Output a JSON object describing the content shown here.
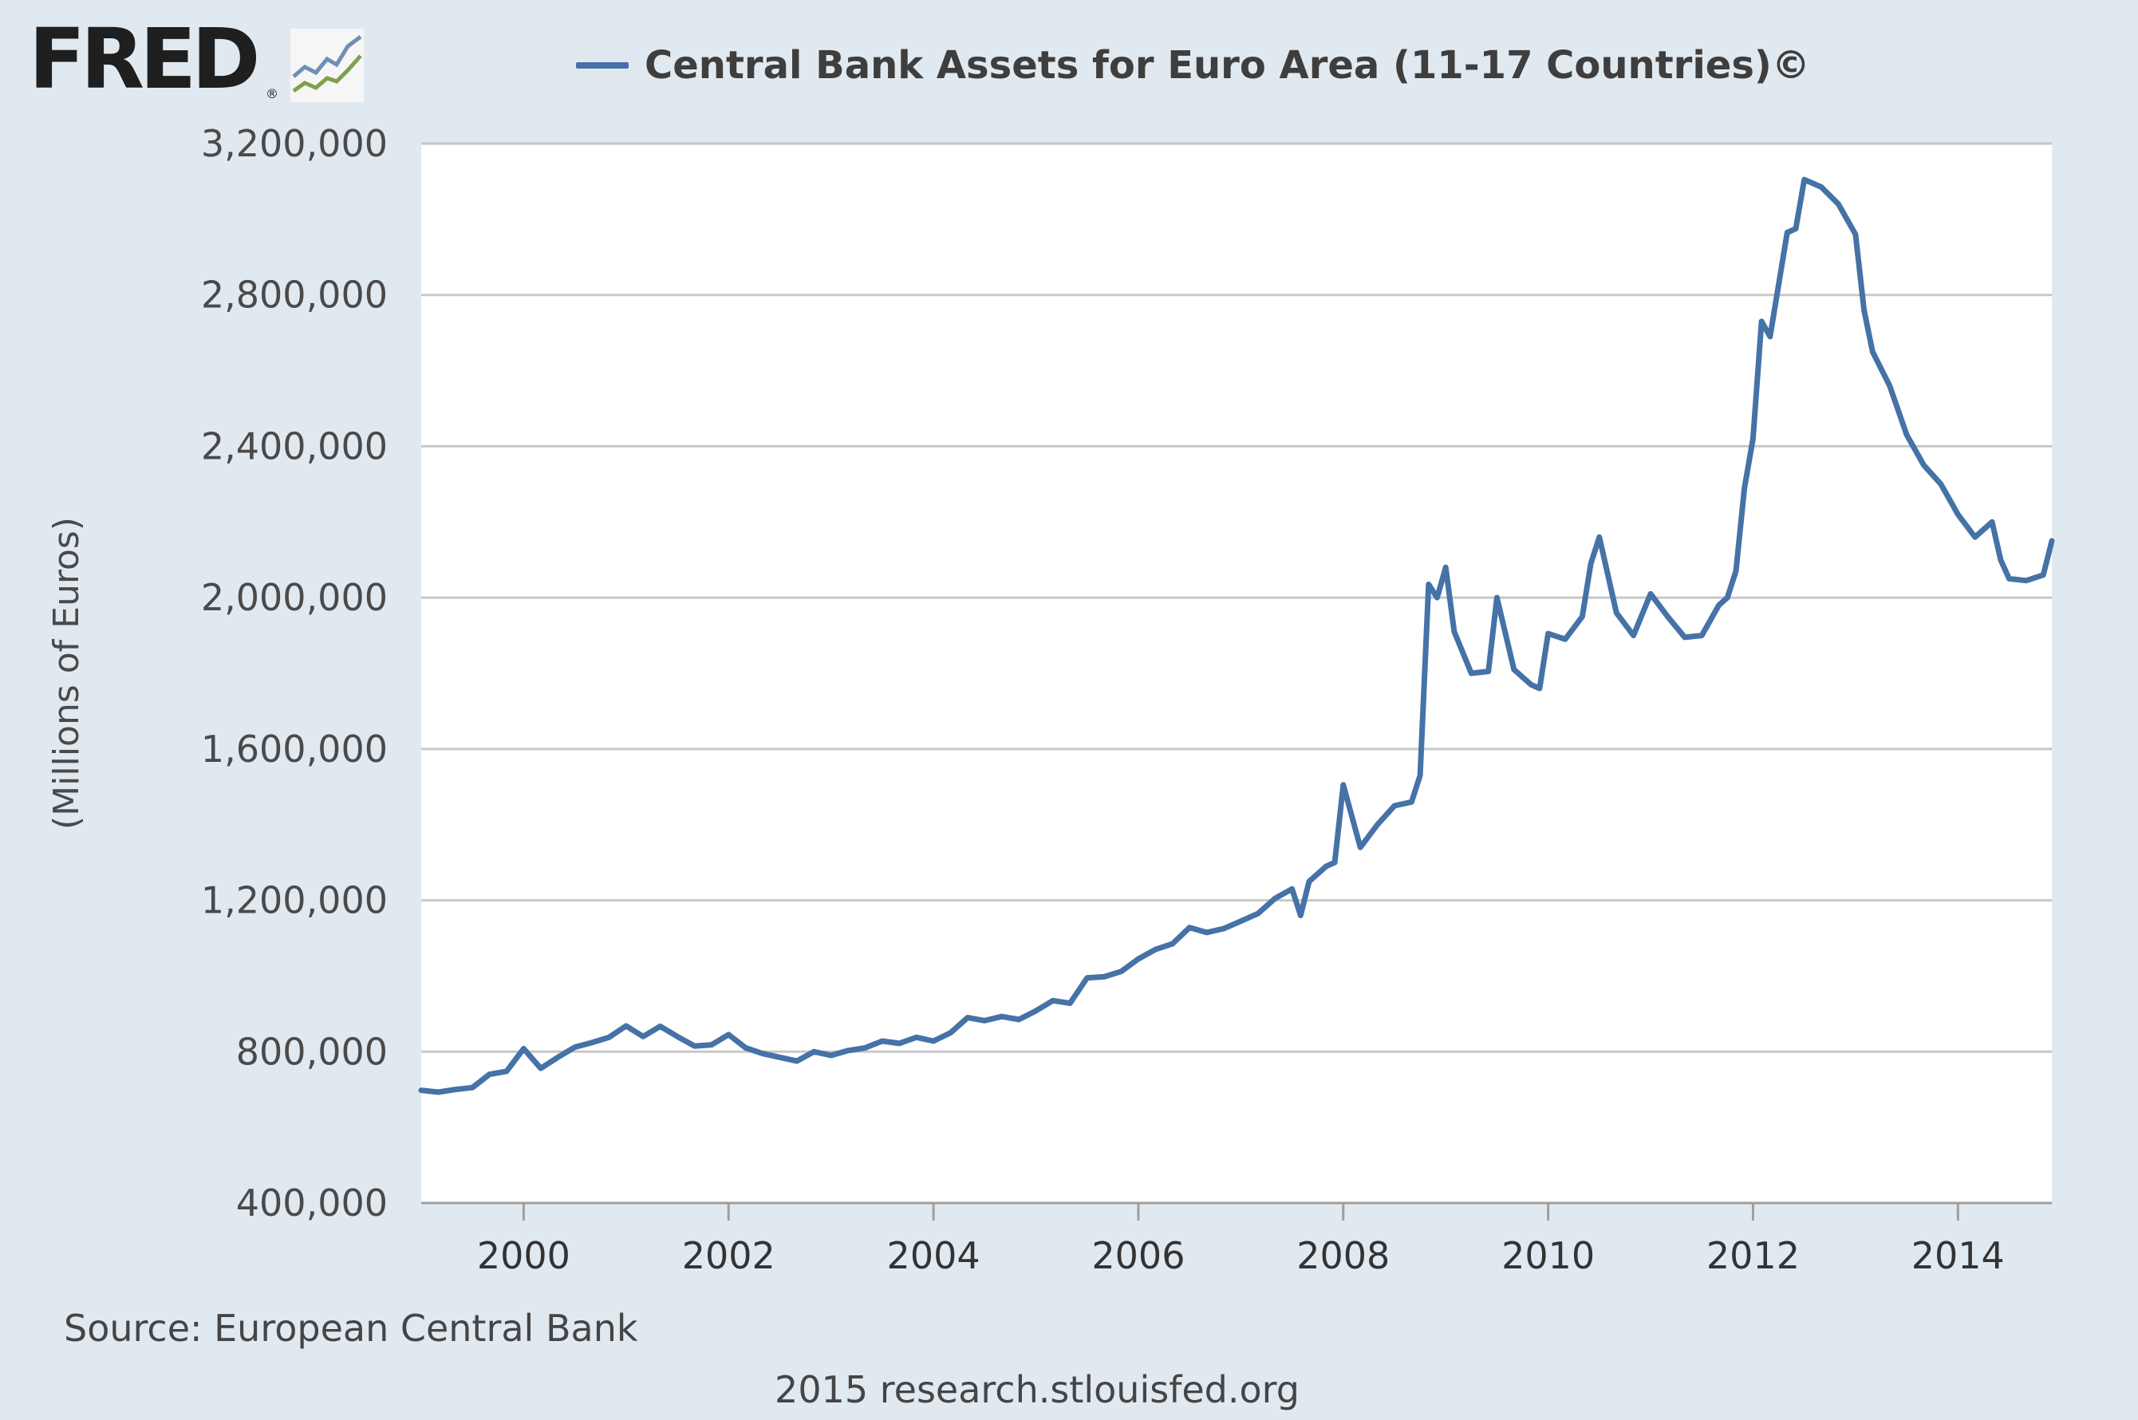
{
  "logo": {
    "text": "FRED",
    "mark": "®",
    "icon": "trend-chart-icon"
  },
  "footer": {
    "source": "Source: European Central Bank",
    "credit": "2015 research.stlouisfed.org"
  },
  "colors": {
    "background": "#e1e9f0",
    "plot": "#ffffff",
    "series": "#4572a7",
    "grid": "#c8c8c8"
  },
  "chart_data": {
    "type": "line",
    "title": "Central Bank Assets for Euro Area (11-17 Countries)©",
    "ylabel": "(Millions of Euros)",
    "xlabel": "",
    "ylim": [
      400000,
      3200000
    ],
    "yticks": [
      400000,
      800000,
      1200000,
      1600000,
      2000000,
      2400000,
      2800000,
      3200000
    ],
    "ytick_labels": [
      "400,000",
      "800,000",
      "1,200,000",
      "1,600,000",
      "2,000,000",
      "2,400,000",
      "2,800,000",
      "3,200,000"
    ],
    "xlim": [
      "1999-01",
      "2014-12"
    ],
    "xticks": [
      "2000-01",
      "2002-01",
      "2004-01",
      "2006-01",
      "2008-01",
      "2010-01",
      "2012-01",
      "2014-01"
    ],
    "xtick_labels": [
      "2000",
      "2002",
      "2004",
      "2006",
      "2008",
      "2010",
      "2012",
      "2014"
    ],
    "grid": true,
    "legend": "top",
    "series": [
      {
        "name": "Central Bank Assets for Euro Area (11-17 Countries)©",
        "x": [
          "1999-01",
          "1999-03",
          "1999-05",
          "1999-07",
          "1999-09",
          "1999-11",
          "2000-01",
          "2000-03",
          "2000-05",
          "2000-07",
          "2000-09",
          "2000-11",
          "2001-01",
          "2001-03",
          "2001-05",
          "2001-07",
          "2001-09",
          "2001-11",
          "2002-01",
          "2002-03",
          "2002-05",
          "2002-07",
          "2002-09",
          "2002-11",
          "2003-01",
          "2003-03",
          "2003-05",
          "2003-07",
          "2003-09",
          "2003-11",
          "2004-01",
          "2004-03",
          "2004-05",
          "2004-07",
          "2004-09",
          "2004-11",
          "2005-01",
          "2005-03",
          "2005-05",
          "2005-07",
          "2005-09",
          "2005-11",
          "2006-01",
          "2006-03",
          "2006-05",
          "2006-07",
          "2006-09",
          "2006-11",
          "2007-01",
          "2007-03",
          "2007-05",
          "2007-07",
          "2007-08",
          "2007-09",
          "2007-11",
          "2007-12",
          "2008-01",
          "2008-03",
          "2008-05",
          "2008-07",
          "2008-09",
          "2008-10",
          "2008-11",
          "2008-12",
          "2009-01",
          "2009-02",
          "2009-04",
          "2009-06",
          "2009-07",
          "2009-09",
          "2009-11",
          "2009-12",
          "2010-01",
          "2010-03",
          "2010-05",
          "2010-06",
          "2010-07",
          "2010-09",
          "2010-11",
          "2011-01",
          "2011-03",
          "2011-05",
          "2011-07",
          "2011-09",
          "2011-10",
          "2011-11",
          "2011-12",
          "2012-01",
          "2012-02",
          "2012-03",
          "2012-05",
          "2012-06",
          "2012-07",
          "2012-09",
          "2012-11",
          "2013-01",
          "2013-02",
          "2013-03",
          "2013-05",
          "2013-07",
          "2013-09",
          "2013-11",
          "2014-01",
          "2014-03",
          "2014-05",
          "2014-06",
          "2014-07",
          "2014-09",
          "2014-11",
          "2014-12"
        ],
        "values": [
          698000,
          693000,
          700000,
          705000,
          740000,
          748000,
          808000,
          756000,
          785000,
          812000,
          824000,
          838000,
          868000,
          840000,
          867000,
          840000,
          815000,
          818000,
          845000,
          810000,
          795000,
          785000,
          775000,
          800000,
          790000,
          803000,
          810000,
          828000,
          822000,
          838000,
          828000,
          850000,
          890000,
          882000,
          893000,
          885000,
          908000,
          935000,
          928000,
          995000,
          998000,
          1012000,
          1045000,
          1070000,
          1085000,
          1128000,
          1115000,
          1125000,
          1145000,
          1165000,
          1205000,
          1230000,
          1160000,
          1250000,
          1290000,
          1300000,
          1505000,
          1340000,
          1400000,
          1450000,
          1460000,
          1530000,
          2035000,
          2000000,
          2080000,
          1910000,
          1800000,
          1805000,
          2000000,
          1810000,
          1770000,
          1760000,
          1905000,
          1890000,
          1950000,
          2090000,
          2160000,
          1960000,
          1900000,
          2010000,
          1950000,
          1895000,
          1900000,
          1980000,
          2000000,
          2070000,
          2290000,
          2420000,
          2730000,
          2690000,
          2965000,
          2975000,
          3105000,
          3085000,
          3040000,
          2960000,
          2760000,
          2650000,
          2560000,
          2430000,
          2350000,
          2300000,
          2220000,
          2160000,
          2200000,
          2100000,
          2050000,
          2045000,
          2060000,
          2150000
        ]
      }
    ]
  }
}
